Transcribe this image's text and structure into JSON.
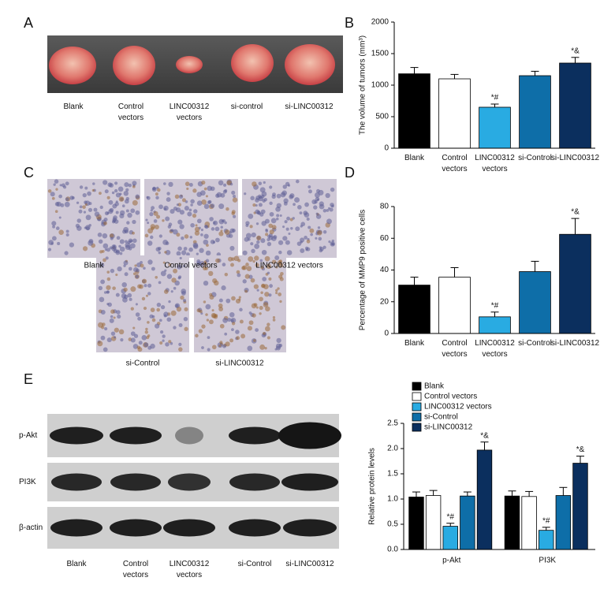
{
  "panel_labels": [
    "A",
    "B",
    "C",
    "D",
    "E"
  ],
  "panel_a": {
    "captions": [
      "Blank",
      "Control vectors",
      "LINC00312 vectors",
      "si-control",
      "si-LINC00312"
    ]
  },
  "panel_c": {
    "captions": [
      "Blank",
      "Control vectors",
      "LINC00312 vectors",
      "si-Control",
      "si-LINC00312"
    ]
  },
  "panel_e_blot": {
    "rows": [
      "p-Akt",
      "PI3K",
      "β-actin"
    ],
    "columns": [
      "Blank",
      "Control vectors",
      "LINC00312 vectors",
      "si-Control",
      "si-LINC00312"
    ]
  },
  "chart_data": [
    {
      "type": "bar",
      "y_label": "The volume of tumors (mm³)",
      "categories": [
        "Blank",
        "Control vectors",
        "LINC00312 vectors",
        "si-Control",
        "si-LINC00312"
      ],
      "values": [
        1180,
        1100,
        650,
        1150,
        1350
      ],
      "errors": [
        100,
        70,
        50,
        70,
        90
      ],
      "annotations": [
        null,
        null,
        "*#",
        null,
        "*&"
      ],
      "colors": [
        "#000000",
        "#ffffff",
        "#29abe2",
        "#0e6ea8",
        "#0b2f5e"
      ],
      "ylim": [
        0,
        2000
      ],
      "yticks": [
        0,
        500,
        1000,
        1500,
        2000
      ]
    },
    {
      "type": "bar",
      "y_label": "Percentage of MMP9 positive cells",
      "categories": [
        "Blank",
        "Control vectors",
        "LINC00312 vectors",
        "si-Control",
        "si-LINC00312"
      ],
      "values": [
        30.5,
        35.5,
        10.5,
        39,
        62.5
      ],
      "errors": [
        5,
        6,
        3,
        6.5,
        10
      ],
      "annotations": [
        null,
        null,
        "*#",
        null,
        "*&"
      ],
      "colors": [
        "#000000",
        "#ffffff",
        "#29abe2",
        "#0e6ea8",
        "#0b2f5e"
      ],
      "ylim": [
        0,
        80
      ],
      "yticks": [
        0,
        20,
        40,
        60,
        80
      ]
    },
    {
      "type": "grouped_bar",
      "y_label": "Relative protein levels",
      "categories": [
        "p-Akt",
        "PI3K"
      ],
      "series": [
        {
          "name": "Blank",
          "color": "#000000",
          "values": [
            1.04,
            1.06
          ],
          "errors": [
            0.1,
            0.1
          ],
          "annotations": [
            null,
            null
          ]
        },
        {
          "name": "Control vectors",
          "color": "#ffffff",
          "values": [
            1.07,
            1.05
          ],
          "errors": [
            0.1,
            0.1
          ],
          "annotations": [
            null,
            null
          ]
        },
        {
          "name": "LINC00312 vectors",
          "color": "#29abe2",
          "values": [
            0.46,
            0.38
          ],
          "errors": [
            0.06,
            0.06
          ],
          "annotations": [
            "*#",
            "*#"
          ]
        },
        {
          "name": "si-Control",
          "color": "#0e6ea8",
          "values": [
            1.06,
            1.07
          ],
          "errors": [
            0.08,
            0.16
          ],
          "annotations": [
            null,
            null
          ]
        },
        {
          "name": "si-LINC00312",
          "color": "#0b2f5e",
          "values": [
            1.97,
            1.71
          ],
          "errors": [
            0.16,
            0.14
          ],
          "annotations": [
            "*&",
            "*&"
          ]
        }
      ],
      "ylim": [
        0,
        2.5
      ],
      "yticks": [
        {
          "value": 0,
          "label": "0.0"
        },
        0.5,
        {
          "value": 1,
          "label": "1.0"
        },
        1.5,
        {
          "value": 2,
          "label": "2.0"
        },
        2.5
      ]
    }
  ]
}
